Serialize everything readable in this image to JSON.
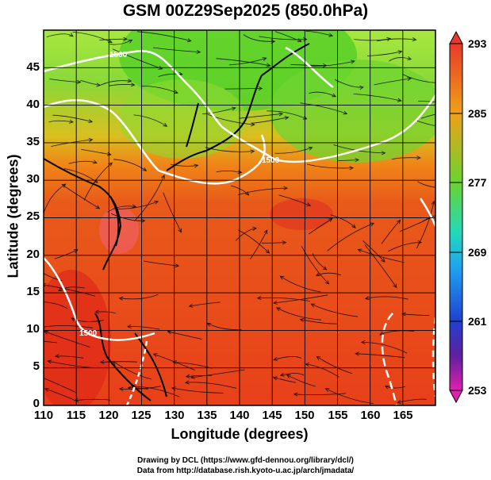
{
  "title": "GSM 00Z29Sep2025 (850.0hPa)",
  "axes": {
    "xlabel": "Longitude (degrees)",
    "ylabel": "Latitude  (degrees)",
    "xticks": [
      "110",
      "115",
      "120",
      "125",
      "130",
      "135",
      "140",
      "145",
      "150",
      "155",
      "160",
      "165"
    ],
    "yticks": [
      "0",
      "5",
      "10",
      "15",
      "20",
      "25",
      "30",
      "35",
      "40",
      "45"
    ],
    "xrange": [
      110,
      170
    ],
    "yrange": [
      0,
      50
    ]
  },
  "colorbar": {
    "labels": [
      "293",
      "285",
      "277",
      "269",
      "261",
      "253"
    ],
    "range": [
      253,
      293
    ]
  },
  "contour_labels": [
    "1500",
    "1500",
    "1500"
  ],
  "credits": {
    "line1": "Drawing by DCL (https://www.gfd-dennou.org/library/dcl/)",
    "line2": "Data from http://database.rish.kyoto-u.ac.jp/arch/jmadata/"
  },
  "colors": {
    "warm": "#e8401a",
    "mid": "#f0a018",
    "cool": "#5fd428",
    "contour": "#ffffff"
  }
}
